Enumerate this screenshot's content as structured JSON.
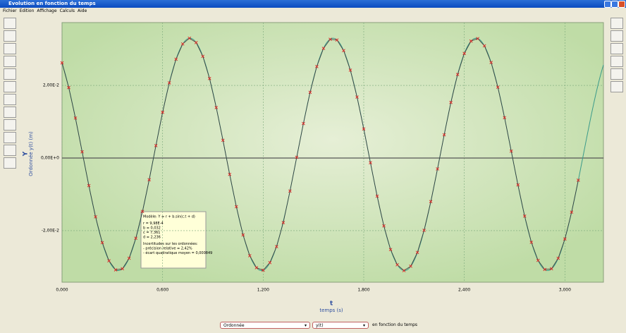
{
  "window": {
    "title": "Evolution en fonction du temps",
    "menu": [
      "Fichier",
      "Edition",
      "Affichage",
      "Calculs",
      "Aide"
    ]
  },
  "chart_data": {
    "type": "line",
    "x_label_symbol": "t",
    "x_label": "temps (s)",
    "y_label_symbol": "Y",
    "y_label": "Ordonnée y(t) (m)",
    "x": [
      0,
      0.04,
      0.08,
      0.12,
      0.16,
      0.2,
      0.24,
      0.28,
      0.32,
      0.36,
      0.4,
      0.44,
      0.48,
      0.52,
      0.56,
      0.6,
      0.64,
      0.68,
      0.72,
      0.76,
      0.8,
      0.84,
      0.88,
      0.92,
      0.96,
      1,
      1.04,
      1.08,
      1.12,
      1.16,
      1.2,
      1.24,
      1.28,
      1.32,
      1.36,
      1.4,
      1.44,
      1.48,
      1.52,
      1.56,
      1.6,
      1.64,
      1.68,
      1.72,
      1.76,
      1.8,
      1.84,
      1.88,
      1.92,
      1.96,
      2,
      2.04,
      2.08,
      2.12,
      2.16,
      2.2,
      2.24,
      2.28,
      2.32,
      2.36,
      2.4,
      2.44,
      2.48,
      2.52,
      2.56,
      2.6,
      2.64,
      2.68,
      2.72,
      2.76,
      2.8,
      2.84,
      2.88,
      2.92,
      2.96,
      3,
      3.04,
      3.08
    ],
    "values": [
      0.0262,
      0.0194,
      0.011,
      0.0017,
      -0.0076,
      -0.0162,
      -0.0233,
      -0.0283,
      -0.0308,
      -0.0305,
      -0.0276,
      -0.0221,
      -0.0147,
      -0.006,
      0.0034,
      0.0126,
      0.0207,
      0.0272,
      0.0314,
      0.033,
      0.0318,
      0.028,
      0.0219,
      0.0139,
      0.0049,
      -0.0045,
      -0.0134,
      -0.0212,
      -0.0269,
      -0.0302,
      -0.0309,
      -0.0288,
      -0.0244,
      -0.0178,
      -0.0091,
      0.0002,
      0.0095,
      0.0181,
      0.0252,
      0.0302,
      0.0327,
      0.0325,
      0.0296,
      0.0242,
      0.0168,
      0.008,
      -0.0013,
      -0.0105,
      -0.0187,
      -0.0252,
      -0.0294,
      -0.031,
      -0.0298,
      -0.026,
      -0.0199,
      -0.012,
      -0.003,
      0.0064,
      0.0153,
      0.023,
      0.0288,
      0.0322,
      0.0329,
      0.0309,
      0.0263,
      0.0195,
      0.0111,
      0.0019,
      -0.0074,
      -0.016,
      -0.0232,
      -0.0282,
      -0.0307,
      -0.0305,
      -0.0276,
      -0.0223,
      -0.0149,
      -0.0061
    ],
    "color": "#e02020",
    "line_color": "#3a3a3a",
    "fit_color": "#3a9a8a",
    "xlim": [
      0,
      3.23
    ],
    "ylim": [
      -0.0342,
      0.0373
    ],
    "xticks": [
      {
        "value": 0,
        "label": "0,000"
      },
      {
        "value": 0.6,
        "label": "0,600"
      },
      {
        "value": 1.2,
        "label": "1,200"
      },
      {
        "value": 1.8,
        "label": "1,800"
      },
      {
        "value": 2.4,
        "label": "2,400"
      },
      {
        "value": 3,
        "label": "3,000"
      }
    ],
    "yticks": [
      {
        "value": 0.02,
        "label": "2,00E-2"
      },
      {
        "value": 0,
        "label": "0,00E+0"
      },
      {
        "value": -0.02,
        "label": "-2,00E-2"
      }
    ],
    "grid": true,
    "annotation": {
      "model": "Modèle: Y = r + b.sin(c.t + d)",
      "params": [
        {
          "value": 0.000998,
          "label": "r = 9,98E-4"
        },
        {
          "value": 0.032,
          "label": "b = 0,032"
        },
        {
          "value": 7.361,
          "label": "c = 7,361"
        },
        {
          "value": 2.236,
          "label": "d = 2,236"
        }
      ],
      "uncertainty_title": "Incertitudes sur les ordonnées:",
      "uncertainty_lines": [
        "- précision relative = 2,42%",
        "- écart quadratique moyen = 0,000849"
      ]
    }
  },
  "footer": {
    "quantity": "Ordonnée",
    "variable": "y(t)",
    "text": "en fonction du temps"
  }
}
